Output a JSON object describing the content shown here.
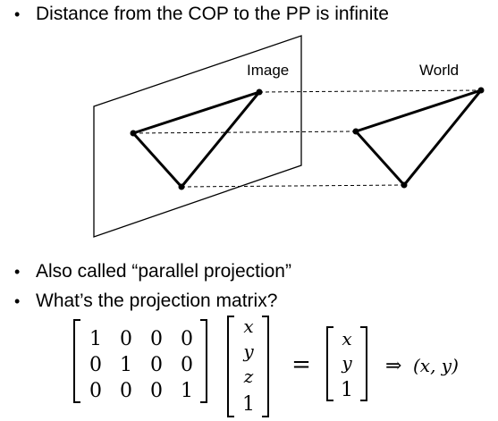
{
  "bullets": [
    "Distance from the COP to the PP is infinite",
    "Also called “parallel projection”",
    "What’s the projection matrix?"
  ],
  "diagram": {
    "image_label": "Image",
    "world_label": "World"
  },
  "matrix": {
    "rows": [
      [
        "1",
        "0",
        "0",
        "0"
      ],
      [
        "0",
        "1",
        "0",
        "0"
      ],
      [
        "0",
        "0",
        "0",
        "1"
      ]
    ],
    "vector_in": [
      "x",
      "y",
      "z",
      "1"
    ],
    "equals": "=",
    "vector_out": [
      "x",
      "y",
      "1"
    ],
    "implies": "⇒",
    "result": "(x, y)"
  }
}
